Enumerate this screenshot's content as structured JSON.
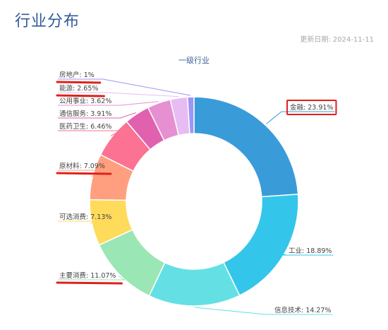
{
  "page": {
    "title": "行业分布",
    "update_date": "更新日期: 2024-11-11"
  },
  "chart_data": {
    "type": "pie",
    "title": "一级行业",
    "variant": "donut",
    "slices": [
      {
        "label": "金融",
        "value": 23.91,
        "display": "金融: 23.91%",
        "color": "#3a9bd9",
        "boxed": true
      },
      {
        "label": "工业",
        "value": 18.89,
        "display": "工业: 18.89%",
        "color": "#34c6ea"
      },
      {
        "label": "信息技术",
        "value": 14.27,
        "display": "信息技术: 14.27%",
        "color": "#64e0e4"
      },
      {
        "label": "主要消费",
        "value": 11.07,
        "display": "主要消费: 11.07%",
        "color": "#9ae6b4",
        "underlined": true
      },
      {
        "label": "可选消费",
        "value": 7.13,
        "display": "可选消费: 7.13%",
        "color": "#ffdb5c"
      },
      {
        "label": "原材料",
        "value": 7.09,
        "display": "原材料: 7.09%",
        "color": "#ff9f7f",
        "underlined": true
      },
      {
        "label": "医药卫生",
        "value": 6.46,
        "display": "医药卫生: 6.46%",
        "color": "#fb7293"
      },
      {
        "label": "通信服务",
        "value": 3.91,
        "display": "通信服务: 3.91%",
        "color": "#e062ae"
      },
      {
        "label": "公用事业",
        "value": 3.62,
        "display": "公用事业: 3.62%",
        "color": "#e690d1"
      },
      {
        "label": "能源",
        "value": 2.65,
        "display": "能源: 2.65%",
        "color": "#e7bcf3",
        "underlined": true
      },
      {
        "label": "房地产",
        "value": 1.0,
        "display": "房地产: 1%",
        "color": "#9d96f5",
        "underlined": true
      }
    ],
    "highlight_color": "#e0201b"
  }
}
